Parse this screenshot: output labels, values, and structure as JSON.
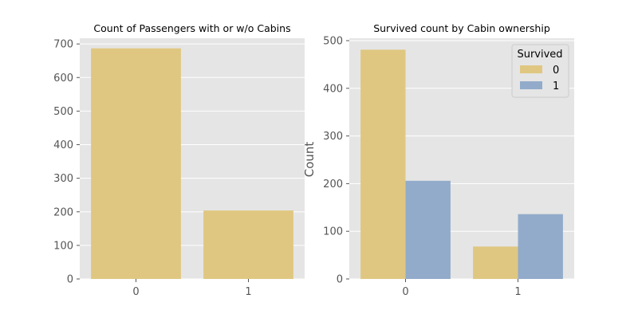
{
  "colors": {
    "panel_bg": "#e5e5e5",
    "grid": "#ffffff",
    "series_0": "#e0c781",
    "series_1": "#92abca",
    "tick_text": "#555555",
    "title_text": "#000000"
  },
  "chart_data": [
    {
      "type": "bar",
      "title": "Count of Passengers with or w/o Cabins",
      "xlabel": "",
      "ylabel": "",
      "categories": [
        "0",
        "1"
      ],
      "values": [
        687,
        204
      ],
      "ylim": [
        0,
        717
      ],
      "yticks": [
        0,
        100,
        200,
        300,
        400,
        500,
        600,
        700
      ],
      "grid": true
    },
    {
      "type": "bar",
      "title": "Survived count by Cabin ownership",
      "xlabel": "",
      "ylabel": "Count",
      "categories": [
        "0",
        "1"
      ],
      "series": [
        {
          "name": "0",
          "values": [
            481,
            68
          ]
        },
        {
          "name": "1",
          "values": [
            206,
            136
          ]
        }
      ],
      "ylim": [
        0,
        505
      ],
      "yticks": [
        0,
        100,
        200,
        300,
        400,
        500
      ],
      "grid": true,
      "legend": {
        "title": "Survived",
        "position": "top-right"
      }
    }
  ]
}
